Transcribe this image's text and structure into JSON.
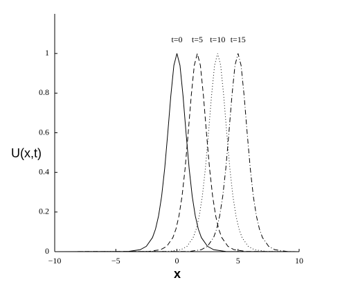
{
  "chart_data": {
    "type": "line",
    "x_label": "x",
    "y_label": "U(x,t)",
    "xlim": [
      -10,
      10
    ],
    "ylim": [
      0,
      1.2
    ],
    "xticks": [
      {
        "value": -10,
        "label": "−10"
      },
      {
        "value": -5,
        "label": "−5"
      },
      0,
      5,
      10
    ],
    "yticks": [
      0,
      0.2,
      0.4,
      0.6,
      0.8,
      1
    ],
    "series": [
      {
        "name": "t=0",
        "color": "#000000",
        "dash": "none",
        "x": [
          -10,
          -4,
          -3,
          -2.5,
          -2,
          -1.75,
          -1.5,
          -1.25,
          -1,
          -0.75,
          -0.5,
          -0.25,
          0,
          0.25,
          0.5,
          0.75,
          1,
          1.25,
          1.5,
          1.75,
          2,
          2.5,
          3,
          4,
          10
        ],
        "values": [
          0,
          0.001,
          0.01,
          0.027,
          0.071,
          0.114,
          0.181,
          0.28,
          0.42,
          0.597,
          0.786,
          0.94,
          1,
          0.94,
          0.786,
          0.597,
          0.42,
          0.28,
          0.181,
          0.114,
          0.071,
          0.027,
          0.01,
          0.001,
          0
        ]
      },
      {
        "name": "t=5",
        "color": "#000000",
        "dash": "7,4",
        "x": [
          -10,
          -2.33,
          -1.33,
          -0.83,
          -0.33,
          -0.08,
          0.17,
          0.42,
          0.67,
          0.92,
          1.17,
          1.42,
          1.67,
          1.92,
          2.17,
          2.42,
          2.67,
          2.92,
          3.17,
          3.42,
          3.67,
          4.17,
          4.67,
          5.67,
          10
        ],
        "values": [
          0,
          0.001,
          0.01,
          0.027,
          0.071,
          0.114,
          0.181,
          0.28,
          0.42,
          0.597,
          0.786,
          0.94,
          1,
          0.94,
          0.786,
          0.597,
          0.42,
          0.28,
          0.181,
          0.114,
          0.071,
          0.027,
          0.01,
          0.001,
          0
        ]
      },
      {
        "name": "t=10",
        "color": "#000000",
        "dash": "1,3",
        "x": [
          -10,
          -0.67,
          0.33,
          0.83,
          1.33,
          1.58,
          1.83,
          2.08,
          2.33,
          2.58,
          2.83,
          3.08,
          3.33,
          3.58,
          3.83,
          4.08,
          4.33,
          4.58,
          4.83,
          5.08,
          5.33,
          5.83,
          6.33,
          7.33,
          10
        ],
        "values": [
          0,
          0.001,
          0.01,
          0.027,
          0.071,
          0.114,
          0.181,
          0.28,
          0.42,
          0.597,
          0.786,
          0.94,
          1,
          0.94,
          0.786,
          0.597,
          0.42,
          0.28,
          0.181,
          0.114,
          0.071,
          0.027,
          0.01,
          0.001,
          0
        ]
      },
      {
        "name": "t=15",
        "color": "#000000",
        "dash": "7,3,1,3",
        "x": [
          -10,
          1,
          2,
          2.5,
          3,
          3.25,
          3.5,
          3.75,
          4,
          4.25,
          4.5,
          4.75,
          5,
          5.25,
          5.5,
          5.75,
          6,
          6.25,
          6.5,
          6.75,
          7,
          7.5,
          8,
          9,
          10
        ],
        "values": [
          0,
          0.001,
          0.01,
          0.027,
          0.071,
          0.114,
          0.181,
          0.28,
          0.42,
          0.597,
          0.786,
          0.94,
          1,
          0.94,
          0.786,
          0.597,
          0.42,
          0.28,
          0.181,
          0.114,
          0.071,
          0.027,
          0.01,
          0.001,
          0
        ]
      }
    ]
  }
}
